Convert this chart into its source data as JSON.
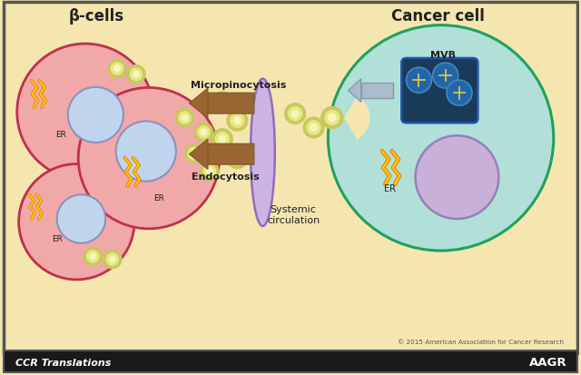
{
  "bg_color": "#f5e6b0",
  "border_color": "#555555",
  "title_beta": "β-cells",
  "title_cancer": "Cancer cell",
  "label_micropinocytosis": "Micropinocytosis",
  "label_endocytosis": "Endocytosis",
  "label_systemic": "Systemic\ncirculation",
  "label_mvb": "MVB",
  "label_er": "ER",
  "label_copyright": "© 2015 American Association for Cancer Research",
  "label_ccr": "CCR Translations",
  "label_aagr": "AAGR",
  "beta_cell_border": "#c0304a",
  "beta_cell_fill": "#f0a8a8",
  "nucleus_fill": "#c0d4ee",
  "nucleus_border": "#9090bb",
  "er_color_outer": "#e88000",
  "er_color_inner": "#ffcc00",
  "exosome_outer": "#c8c860",
  "exosome_ring": "#e8e880",
  "exosome_inner": "#f5f5c0",
  "cancer_cell_border": "#20a060",
  "cancer_cell_fill": "#b0e0d8",
  "mvb_fill": "#1a3a5a",
  "mvb_border": "#2255aa",
  "mvb_inner_dot": "#2266aa",
  "mvb_cross": "#e8cc40",
  "mvb_box_fill": "#1a3a5a",
  "mvb_box_border": "#2255aa",
  "nucleus_cancer_fill": "#c8b0d8",
  "nucleus_cancer_border": "#9880b8",
  "vessel_fill": "#c8b0e8",
  "vessel_border": "#8866bb",
  "arrow_color": "#996633",
  "arrow_outline": "#805520",
  "small_arrow_fill": "#aabbcc",
  "small_arrow_border": "#8899aa",
  "footer_bg": "#1a1a1a",
  "footer_text": "#ffffff",
  "text_color": "#222222"
}
